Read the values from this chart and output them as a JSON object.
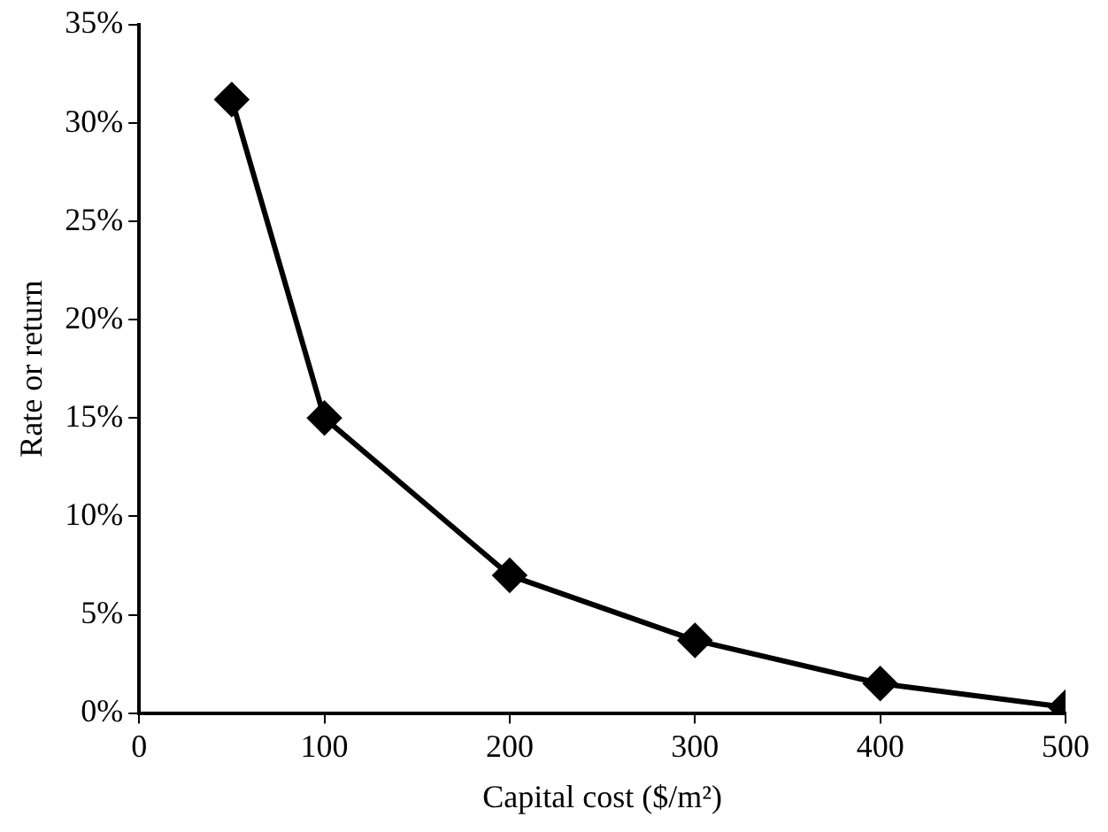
{
  "chart_data": {
    "type": "line",
    "xlabel": "Capital cost ($/m²)",
    "ylabel": "Rate or return",
    "x": [
      50,
      100,
      200,
      300,
      400,
      500
    ],
    "series": [
      {
        "color": "#000000",
        "values": [
          31.2,
          15,
          7,
          3.7,
          1.5,
          0.3
        ]
      }
    ],
    "xlim": [
      0,
      500
    ],
    "xticks": [
      0,
      100,
      200,
      300,
      400,
      500
    ],
    "ylim": [
      0,
      35
    ],
    "yticks": [
      {
        "value": 0,
        "label": "0%"
      },
      {
        "value": 5,
        "label": "5%"
      },
      {
        "value": 10,
        "label": "10%"
      },
      {
        "value": 15,
        "label": "15%"
      },
      {
        "value": 20,
        "label": "20%"
      },
      {
        "value": 25,
        "label": "25%"
      },
      {
        "value": 30,
        "label": "30%"
      },
      {
        "value": 35,
        "label": "35%"
      }
    ],
    "marker": "diamond",
    "line_style": "solid"
  }
}
